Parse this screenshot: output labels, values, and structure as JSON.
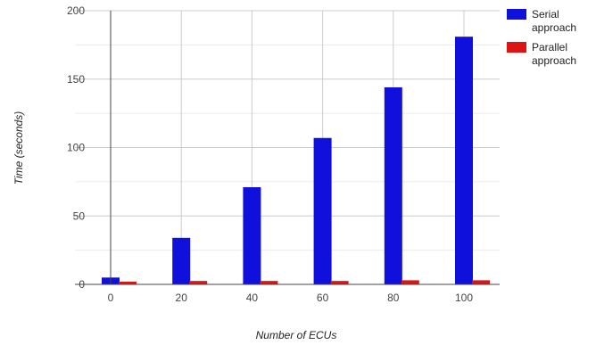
{
  "chart_data": {
    "type": "bar",
    "title": "",
    "xlabel": "Number of ECUs",
    "ylabel": "Time (seconds)",
    "ylim": [
      0,
      200
    ],
    "yticks": [
      0,
      50,
      100,
      150,
      200
    ],
    "grid": true,
    "legend_position": "right-top",
    "categories": [
      "0",
      "20",
      "40",
      "60",
      "80",
      "100"
    ],
    "series": [
      {
        "name": "Serial approach",
        "color": "#1010dc",
        "values": [
          5,
          34,
          71,
          107,
          144,
          181
        ]
      },
      {
        "name": "Parallel approach",
        "color": "#dc1414",
        "values": [
          2,
          2.5,
          2.5,
          2.5,
          3,
          3
        ]
      }
    ]
  }
}
